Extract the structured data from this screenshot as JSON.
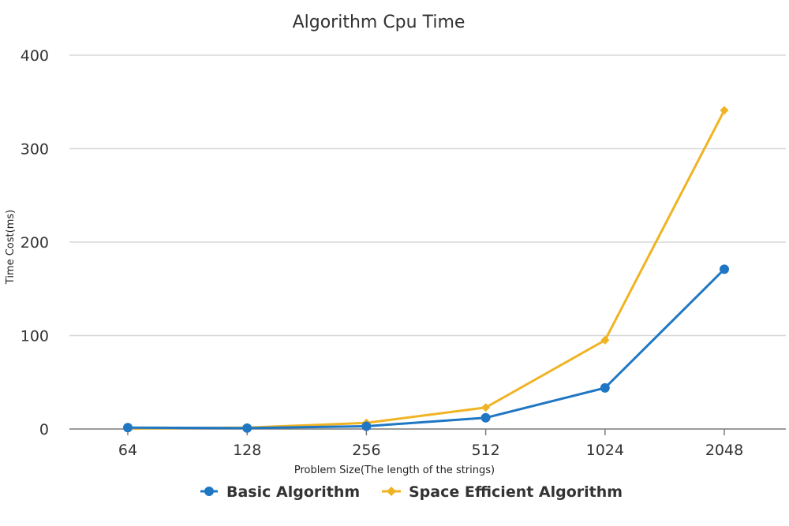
{
  "chart_data": {
    "type": "line",
    "title": "Algorithm Cpu Time",
    "xlabel": "Problem Size(The length of the strings)",
    "ylabel": "Time Cost(ms)",
    "categories": [
      "64",
      "128",
      "256",
      "512",
      "1024",
      "2048"
    ],
    "ylim": [
      0,
      400
    ],
    "yticks": [
      "0",
      "100",
      "200",
      "300",
      "400"
    ],
    "grid": true,
    "legend_position": "bottom-center",
    "series": [
      {
        "name": "Basic Algorithm",
        "color": "#1f77c4",
        "marker": "circle",
        "values": [
          1.5,
          1,
          3,
          12,
          44,
          171
        ]
      },
      {
        "name": "Space Efficient Algorithm",
        "color": "#f0b323",
        "marker": "diamond",
        "values": [
          0.5,
          1.5,
          6.5,
          23,
          95,
          341
        ]
      }
    ]
  }
}
